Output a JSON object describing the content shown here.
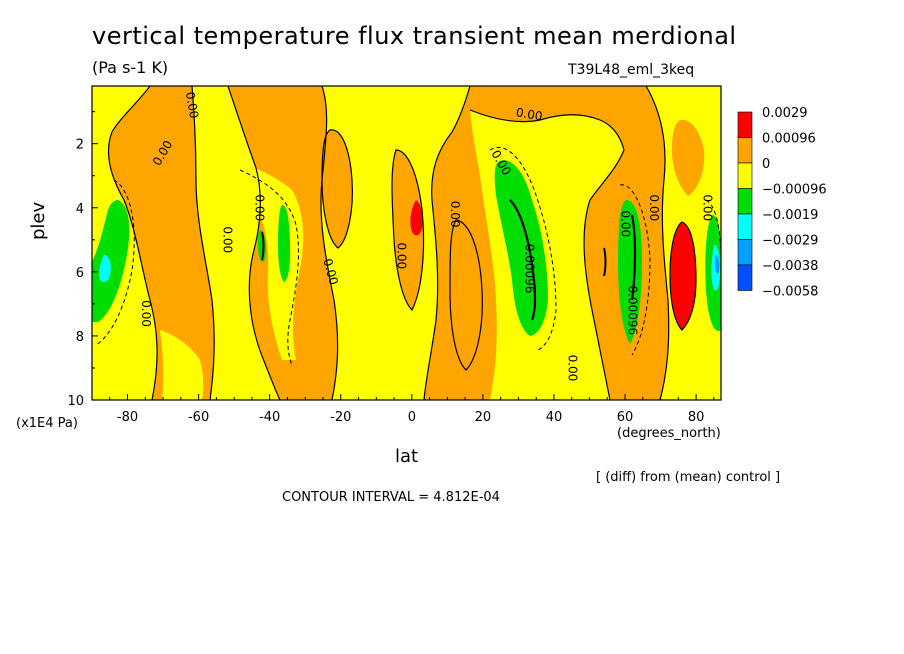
{
  "chart_data": {
    "type": "heatmap",
    "title": "vertical temperature flux transient mean merdional",
    "units": "(Pa s-1 K)",
    "run_label": "T39L48_eml_3keq",
    "xlabel": "lat",
    "x_units": "(degrees_north)",
    "ylabel": "plev",
    "y_units": "(x1E4 Pa)",
    "xlim": [
      -90,
      87
    ],
    "ylim": [
      10,
      0.2
    ],
    "x_ticks": [
      "-80",
      "-60",
      "-40",
      "-20",
      "0",
      "20",
      "40",
      "60",
      "80"
    ],
    "x_tick_values": [
      -80,
      -60,
      -40,
      -20,
      0,
      20,
      40,
      60,
      80
    ],
    "y_ticks": [
      "2",
      "4",
      "6",
      "8",
      "10"
    ],
    "y_tick_values": [
      2,
      4,
      6,
      8,
      10
    ],
    "colorbar": {
      "labels": [
        "0.0029",
        "0.00096",
        "0",
        "−0.00096",
        "−0.0019",
        "−0.0029",
        "−0.0038",
        "−0.0058"
      ],
      "colors": [
        "#ff0000",
        "#ffa500",
        "#ffff00",
        "#00dd00",
        "#00ffff",
        "#00a0ff",
        "#0050ff"
      ]
    },
    "note": "[ (diff) from (mean) control ]",
    "contour_interval": "CONTOUR INTERVAL = 4.812E-04",
    "contour_labels": [
      {
        "text": "0.00",
        "lat": -70,
        "plev": 2.3,
        "angle": -60
      },
      {
        "text": "0.00",
        "lat": -62,
        "plev": 0.8,
        "angle": 80
      },
      {
        "text": "0.00",
        "lat": -52,
        "plev": 5.0,
        "angle": 90
      },
      {
        "text": "0.00",
        "lat": -43,
        "plev": 4.0,
        "angle": 90
      },
      {
        "text": "0.00",
        "lat": -75,
        "plev": 7.3,
        "angle": 90
      },
      {
        "text": "0.00",
        "lat": -23,
        "plev": 6.0,
        "angle": 75
      },
      {
        "text": "0.00",
        "lat": -3,
        "plev": 5.5,
        "angle": 90
      },
      {
        "text": "0.00",
        "lat": 12,
        "plev": 4.2,
        "angle": 90
      },
      {
        "text": "0.00",
        "lat": 33,
        "plev": 1.1,
        "angle": 10
      },
      {
        "text": "0.00",
        "lat": 25,
        "plev": 2.6,
        "angle": 60
      },
      {
        "text": "0.00",
        "lat": 45,
        "plev": 9.0,
        "angle": 90
      },
      {
        "text": "0.00",
        "lat": 60,
        "plev": 4.5,
        "angle": 90
      },
      {
        "text": "0.00",
        "lat": 68,
        "plev": 4.0,
        "angle": 90
      },
      {
        "text": "0.00",
        "lat": 83,
        "plev": 4.0,
        "angle": 90
      },
      {
        "text": "0.00096",
        "lat": 33,
        "plev": 5.9,
        "angle": 90
      },
      {
        "text": "0.00096",
        "lat": 62,
        "plev": 7.2,
        "angle": 90
      }
    ]
  }
}
